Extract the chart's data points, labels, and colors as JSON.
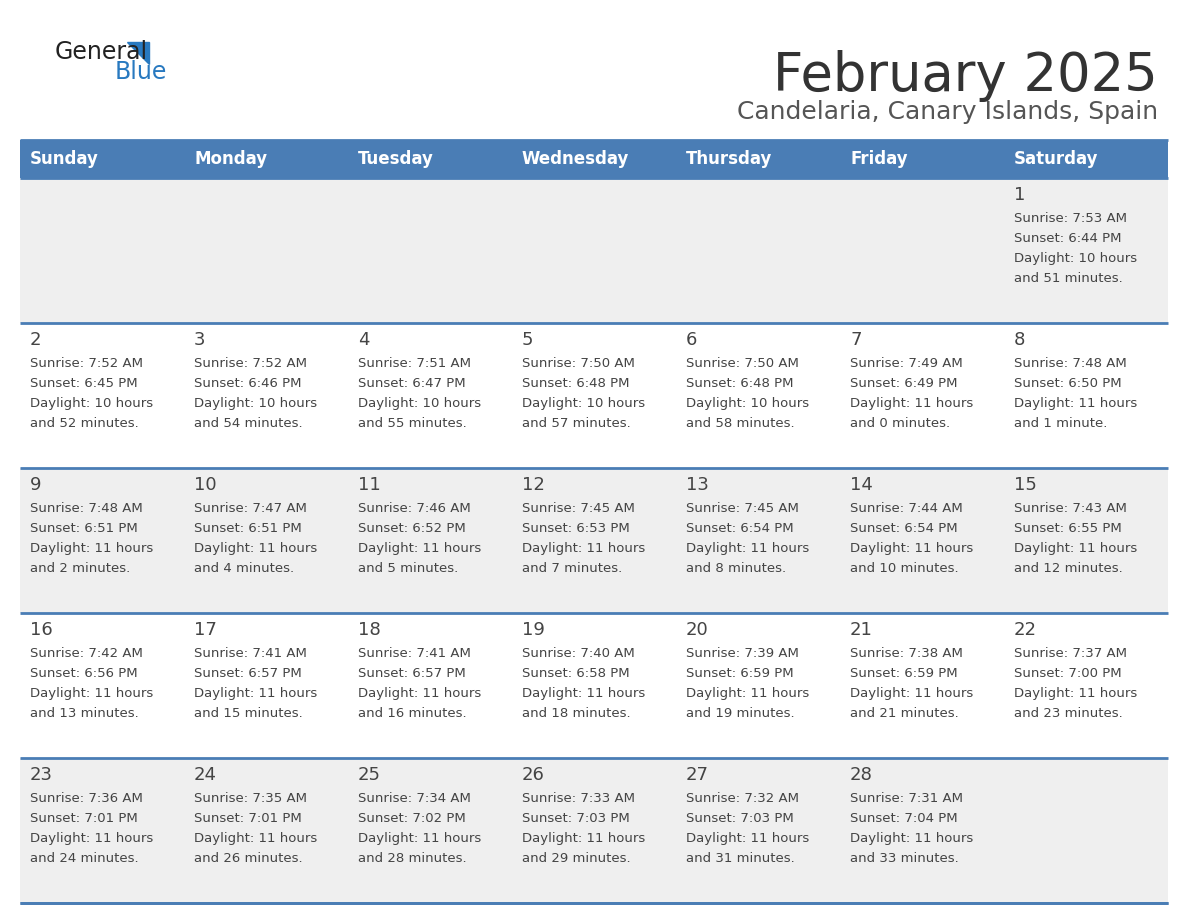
{
  "title": "February 2025",
  "subtitle": "Candelaria, Canary Islands, Spain",
  "days_of_week": [
    "Sunday",
    "Monday",
    "Tuesday",
    "Wednesday",
    "Thursday",
    "Friday",
    "Saturday"
  ],
  "header_bg": "#4a7db5",
  "header_text": "#FFFFFF",
  "row_bg_odd": "#EFEFEF",
  "row_bg_even": "#FFFFFF",
  "line_color": "#4a7db5",
  "text_color": "#444444",
  "date_color": "#444444",
  "logo_general_color": "#222222",
  "logo_blue_color": "#2879C0",
  "calendar_data": [
    [
      {
        "day": null
      },
      {
        "day": null
      },
      {
        "day": null
      },
      {
        "day": null
      },
      {
        "day": null
      },
      {
        "day": null
      },
      {
        "day": 1,
        "sunrise": "7:53 AM",
        "sunset": "6:44 PM",
        "daylight_h": "10 hours",
        "daylight_m": "51 minutes."
      }
    ],
    [
      {
        "day": 2,
        "sunrise": "7:52 AM",
        "sunset": "6:45 PM",
        "daylight_h": "10 hours",
        "daylight_m": "52 minutes."
      },
      {
        "day": 3,
        "sunrise": "7:52 AM",
        "sunset": "6:46 PM",
        "daylight_h": "10 hours",
        "daylight_m": "54 minutes."
      },
      {
        "day": 4,
        "sunrise": "7:51 AM",
        "sunset": "6:47 PM",
        "daylight_h": "10 hours",
        "daylight_m": "55 minutes."
      },
      {
        "day": 5,
        "sunrise": "7:50 AM",
        "sunset": "6:48 PM",
        "daylight_h": "10 hours",
        "daylight_m": "57 minutes."
      },
      {
        "day": 6,
        "sunrise": "7:50 AM",
        "sunset": "6:48 PM",
        "daylight_h": "10 hours",
        "daylight_m": "58 minutes."
      },
      {
        "day": 7,
        "sunrise": "7:49 AM",
        "sunset": "6:49 PM",
        "daylight_h": "11 hours",
        "daylight_m": "0 minutes."
      },
      {
        "day": 8,
        "sunrise": "7:48 AM",
        "sunset": "6:50 PM",
        "daylight_h": "11 hours",
        "daylight_m": "1 minute."
      }
    ],
    [
      {
        "day": 9,
        "sunrise": "7:48 AM",
        "sunset": "6:51 PM",
        "daylight_h": "11 hours",
        "daylight_m": "2 minutes."
      },
      {
        "day": 10,
        "sunrise": "7:47 AM",
        "sunset": "6:51 PM",
        "daylight_h": "11 hours",
        "daylight_m": "4 minutes."
      },
      {
        "day": 11,
        "sunrise": "7:46 AM",
        "sunset": "6:52 PM",
        "daylight_h": "11 hours",
        "daylight_m": "5 minutes."
      },
      {
        "day": 12,
        "sunrise": "7:45 AM",
        "sunset": "6:53 PM",
        "daylight_h": "11 hours",
        "daylight_m": "7 minutes."
      },
      {
        "day": 13,
        "sunrise": "7:45 AM",
        "sunset": "6:54 PM",
        "daylight_h": "11 hours",
        "daylight_m": "8 minutes."
      },
      {
        "day": 14,
        "sunrise": "7:44 AM",
        "sunset": "6:54 PM",
        "daylight_h": "11 hours",
        "daylight_m": "10 minutes."
      },
      {
        "day": 15,
        "sunrise": "7:43 AM",
        "sunset": "6:55 PM",
        "daylight_h": "11 hours",
        "daylight_m": "12 minutes."
      }
    ],
    [
      {
        "day": 16,
        "sunrise": "7:42 AM",
        "sunset": "6:56 PM",
        "daylight_h": "11 hours",
        "daylight_m": "13 minutes."
      },
      {
        "day": 17,
        "sunrise": "7:41 AM",
        "sunset": "6:57 PM",
        "daylight_h": "11 hours",
        "daylight_m": "15 minutes."
      },
      {
        "day": 18,
        "sunrise": "7:41 AM",
        "sunset": "6:57 PM",
        "daylight_h": "11 hours",
        "daylight_m": "16 minutes."
      },
      {
        "day": 19,
        "sunrise": "7:40 AM",
        "sunset": "6:58 PM",
        "daylight_h": "11 hours",
        "daylight_m": "18 minutes."
      },
      {
        "day": 20,
        "sunrise": "7:39 AM",
        "sunset": "6:59 PM",
        "daylight_h": "11 hours",
        "daylight_m": "19 minutes."
      },
      {
        "day": 21,
        "sunrise": "7:38 AM",
        "sunset": "6:59 PM",
        "daylight_h": "11 hours",
        "daylight_m": "21 minutes."
      },
      {
        "day": 22,
        "sunrise": "7:37 AM",
        "sunset": "7:00 PM",
        "daylight_h": "11 hours",
        "daylight_m": "23 minutes."
      }
    ],
    [
      {
        "day": 23,
        "sunrise": "7:36 AM",
        "sunset": "7:01 PM",
        "daylight_h": "11 hours",
        "daylight_m": "24 minutes."
      },
      {
        "day": 24,
        "sunrise": "7:35 AM",
        "sunset": "7:01 PM",
        "daylight_h": "11 hours",
        "daylight_m": "26 minutes."
      },
      {
        "day": 25,
        "sunrise": "7:34 AM",
        "sunset": "7:02 PM",
        "daylight_h": "11 hours",
        "daylight_m": "28 minutes."
      },
      {
        "day": 26,
        "sunrise": "7:33 AM",
        "sunset": "7:03 PM",
        "daylight_h": "11 hours",
        "daylight_m": "29 minutes."
      },
      {
        "day": 27,
        "sunrise": "7:32 AM",
        "sunset": "7:03 PM",
        "daylight_h": "11 hours",
        "daylight_m": "31 minutes."
      },
      {
        "day": 28,
        "sunrise": "7:31 AM",
        "sunset": "7:04 PM",
        "daylight_h": "11 hours",
        "daylight_m": "33 minutes."
      },
      {
        "day": null
      }
    ]
  ]
}
